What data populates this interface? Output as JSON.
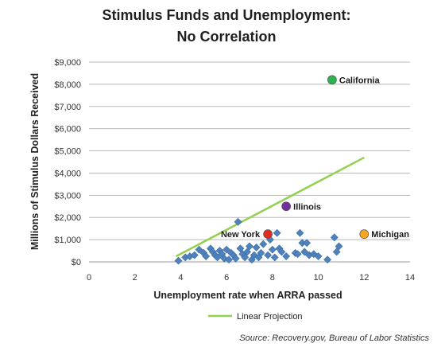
{
  "chart_data": {
    "type": "scatter",
    "title_line1": "Stimulus Funds and Unemployment:",
    "title_line2": "No Correlation",
    "xlabel": "Unemployment rate when ARRA passed",
    "ylabel": "Millions of Stimulus Dollars Received",
    "xlim": [
      0,
      14
    ],
    "ylim": [
      0,
      9000
    ],
    "x_ticks": [
      0,
      2,
      4,
      6,
      8,
      10,
      12,
      14
    ],
    "y_ticks": [
      0,
      1000,
      2000,
      3000,
      4000,
      5000,
      6000,
      7000,
      8000,
      9000
    ],
    "y_tick_labels": [
      "$0",
      "$1,000",
      "$2,000",
      "$3,000",
      "$4,000",
      "$5,000",
      "$6,000",
      "$7,000",
      "$8,000",
      "$9,000"
    ],
    "grid": "horizontal",
    "series": [
      {
        "name": "",
        "marker": "diamond",
        "color": "#4f81bd",
        "points": [
          [
            3.9,
            50
          ],
          [
            4.2,
            200
          ],
          [
            4.4,
            250
          ],
          [
            4.6,
            300
          ],
          [
            4.8,
            550
          ],
          [
            5.0,
            400
          ],
          [
            5.1,
            250
          ],
          [
            5.3,
            600
          ],
          [
            5.4,
            450
          ],
          [
            5.5,
            300
          ],
          [
            5.6,
            200
          ],
          [
            5.7,
            500
          ],
          [
            5.8,
            350
          ],
          [
            5.9,
            150
          ],
          [
            6.0,
            550
          ],
          [
            6.1,
            100
          ],
          [
            6.2,
            400
          ],
          [
            6.3,
            300
          ],
          [
            6.4,
            150
          ],
          [
            6.5,
            1800
          ],
          [
            6.6,
            600
          ],
          [
            6.7,
            350
          ],
          [
            6.8,
            200
          ],
          [
            6.9,
            450
          ],
          [
            7.0,
            700
          ],
          [
            7.1,
            100
          ],
          [
            7.2,
            300
          ],
          [
            7.3,
            650
          ],
          [
            7.4,
            200
          ],
          [
            7.5,
            400
          ],
          [
            7.6,
            800
          ],
          [
            7.8,
            300
          ],
          [
            7.9,
            1000
          ],
          [
            8.0,
            550
          ],
          [
            8.1,
            200
          ],
          [
            8.2,
            1300
          ],
          [
            8.3,
            600
          ],
          [
            8.4,
            450
          ],
          [
            8.6,
            250
          ],
          [
            9.0,
            400
          ],
          [
            9.1,
            350
          ],
          [
            9.2,
            1300
          ],
          [
            9.3,
            850
          ],
          [
            9.4,
            450
          ],
          [
            9.5,
            850
          ],
          [
            9.6,
            300
          ],
          [
            9.8,
            350
          ],
          [
            10.0,
            250
          ],
          [
            10.4,
            100
          ],
          [
            10.7,
            1100
          ],
          [
            10.8,
            450
          ],
          [
            10.9,
            700
          ]
        ]
      },
      {
        "name": "Linear Projection",
        "kind": "line",
        "color": "#92d050",
        "points": [
          [
            3.8,
            250
          ],
          [
            12.0,
            4700
          ]
        ]
      }
    ],
    "highlights": [
      {
        "label": "California",
        "x": 10.6,
        "y": 8200,
        "color": "#2db24f",
        "label_side": "right"
      },
      {
        "label": "Illinois",
        "x": 8.6,
        "y": 2500,
        "color": "#7030a0",
        "label_side": "right"
      },
      {
        "label": "New York",
        "x": 7.8,
        "y": 1250,
        "color": "#e02b20",
        "label_side": "left"
      },
      {
        "label": "Michigan",
        "x": 12.0,
        "y": 1250,
        "color": "#f6a623",
        "label_side": "right"
      }
    ],
    "legend": {
      "label": "Linear Projection",
      "placement": "bottom-center"
    },
    "source": "Source: Recovery.gov, Bureau of Labor Statistics"
  }
}
